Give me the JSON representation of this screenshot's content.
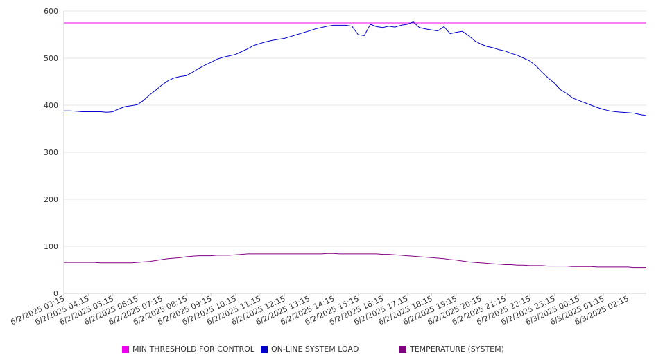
{
  "chart_data": {
    "type": "line",
    "title": "",
    "xlabel": "",
    "ylabel": "",
    "ylim": [
      0,
      600
    ],
    "yticks": [
      0,
      100,
      200,
      300,
      400,
      500,
      600
    ],
    "grid": true,
    "legend_position": "bottom",
    "x_tick_labels": [
      "6/2/2025 03:15",
      "6/2/2025 04:15",
      "6/2/2025 05:15",
      "6/2/2025 06:15",
      "6/2/2025 07:15",
      "6/2/2025 08:15",
      "6/2/2025 09:15",
      "6/2/2025 10:15",
      "6/2/2025 11:15",
      "6/2/2025 12:15",
      "6/2/2025 13:15",
      "6/2/2025 14:15",
      "6/2/2025 15:15",
      "6/2/2025 16:15",
      "6/2/2025 17:15",
      "6/2/2025 18:15",
      "6/2/2025 19:15",
      "6/2/2025 20:15",
      "6/2/2025 21:15",
      "6/2/2025 22:15",
      "6/2/2025 23:15",
      "6/3/2025 00:15",
      "6/3/2025 01:15",
      "6/3/2025 02:15"
    ],
    "x": [
      "03:15",
      "03:30",
      "03:45",
      "04:00",
      "04:15",
      "04:30",
      "04:45",
      "05:00",
      "05:15",
      "05:30",
      "05:45",
      "06:00",
      "06:15",
      "06:30",
      "06:45",
      "07:00",
      "07:15",
      "07:30",
      "07:45",
      "08:00",
      "08:15",
      "08:30",
      "08:45",
      "09:00",
      "09:15",
      "09:30",
      "09:45",
      "10:00",
      "10:15",
      "10:30",
      "10:45",
      "11:00",
      "11:15",
      "11:30",
      "11:45",
      "12:00",
      "12:15",
      "12:30",
      "12:45",
      "13:00",
      "13:15",
      "13:30",
      "13:45",
      "14:00",
      "14:15",
      "14:30",
      "14:45",
      "15:00",
      "15:15",
      "15:30",
      "15:45",
      "16:00",
      "16:15",
      "16:30",
      "16:45",
      "17:00",
      "17:15",
      "17:30",
      "17:45",
      "18:00",
      "18:15",
      "18:30",
      "18:45",
      "19:00",
      "19:15",
      "19:30",
      "19:45",
      "20:00",
      "20:15",
      "20:30",
      "20:45",
      "21:00",
      "21:15",
      "21:30",
      "21:45",
      "22:00",
      "22:15",
      "22:30",
      "22:45",
      "23:00",
      "23:15",
      "23:30",
      "23:45",
      "00:00",
      "00:15",
      "00:30",
      "00:45",
      "01:00",
      "01:15",
      "01:30",
      "01:45",
      "02:00",
      "02:15",
      "02:30",
      "02:45",
      "03:00"
    ],
    "series": [
      {
        "name": "MIN THRESHOLD FOR CONTROL",
        "color": "#ee00ee",
        "values": [
          575,
          575,
          575,
          575,
          575,
          575,
          575,
          575,
          575,
          575,
          575,
          575,
          575,
          575,
          575,
          575,
          575,
          575,
          575,
          575,
          575,
          575,
          575,
          575,
          575,
          575,
          575,
          575,
          575,
          575,
          575,
          575,
          575,
          575,
          575,
          575,
          575,
          575,
          575,
          575,
          575,
          575,
          575,
          575,
          575,
          575,
          575,
          575,
          575,
          575,
          575,
          575,
          575,
          575,
          575,
          575,
          575,
          575,
          575,
          575,
          575,
          575,
          575,
          575,
          575,
          575,
          575,
          575,
          575,
          575,
          575,
          575,
          575,
          575,
          575,
          575,
          575,
          575,
          575,
          575,
          575,
          575,
          575,
          575,
          575,
          575,
          575,
          575,
          575,
          575,
          575,
          575,
          575,
          575,
          575,
          575
        ]
      },
      {
        "name": "ON-LINE SYSTEM LOAD",
        "color": "#0000cc",
        "values": [
          388,
          388,
          387,
          386,
          386,
          386,
          386,
          385,
          386,
          392,
          397,
          399,
          401,
          410,
          422,
          432,
          443,
          452,
          458,
          461,
          463,
          470,
          478,
          485,
          491,
          498,
          502,
          505,
          508,
          514,
          520,
          527,
          531,
          535,
          538,
          540,
          542,
          546,
          550,
          554,
          558,
          562,
          565,
          568,
          570,
          570,
          570,
          568,
          550,
          548,
          572,
          567,
          565,
          568,
          566,
          570,
          572,
          577,
          565,
          562,
          560,
          558,
          567,
          552,
          555,
          557,
          548,
          537,
          530,
          525,
          522,
          518,
          515,
          510,
          506,
          500,
          494,
          484,
          470,
          458,
          447,
          433,
          425,
          415,
          410,
          405,
          400,
          395,
          391,
          388,
          386,
          385,
          384,
          383,
          380,
          378
        ]
      },
      {
        "name": "TEMPERATURE (SYSTEM)",
        "color": "#800080",
        "values": [
          66,
          66,
          66,
          66,
          66,
          66,
          65,
          65,
          65,
          65,
          65,
          65,
          66,
          67,
          68,
          70,
          72,
          74,
          75,
          76,
          78,
          79,
          80,
          80,
          80,
          81,
          81,
          81,
          82,
          83,
          84,
          84,
          84,
          84,
          84,
          84,
          84,
          84,
          84,
          84,
          84,
          84,
          84,
          85,
          85,
          84,
          84,
          84,
          84,
          84,
          84,
          84,
          83,
          83,
          82,
          81,
          80,
          79,
          78,
          77,
          76,
          75,
          74,
          72,
          71,
          69,
          67,
          66,
          65,
          64,
          63,
          62,
          61,
          61,
          60,
          60,
          59,
          59,
          59,
          58,
          58,
          58,
          58,
          57,
          57,
          57,
          57,
          56,
          56,
          56,
          56,
          56,
          56,
          55,
          55,
          55
        ]
      }
    ]
  }
}
